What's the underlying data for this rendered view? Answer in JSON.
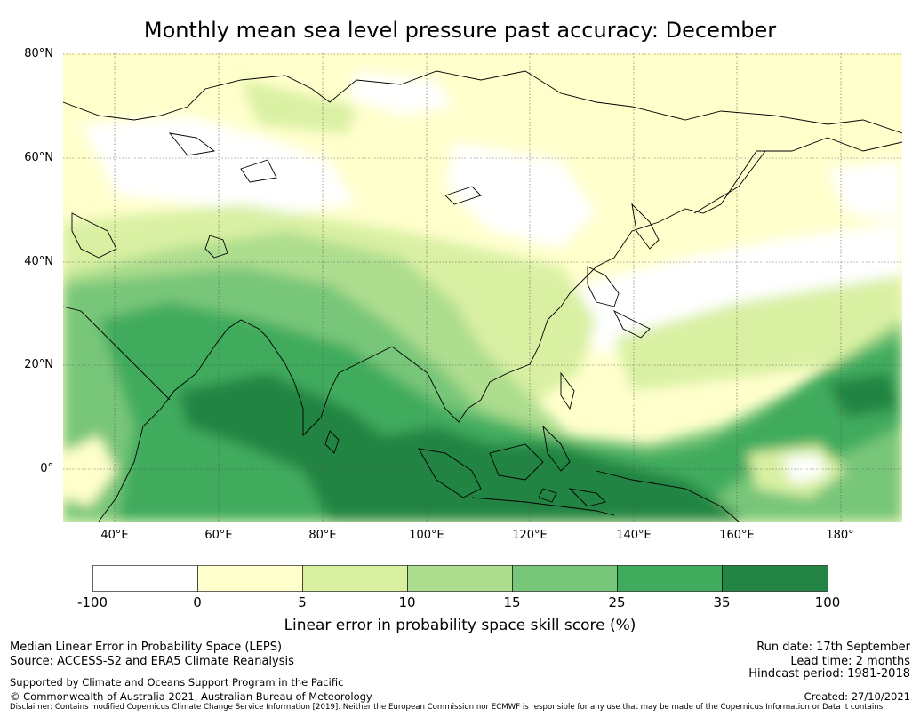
{
  "title": "Monthly mean sea level pressure past accuracy: December",
  "map": {
    "lat_labels": [
      "80°N",
      "60°N",
      "40°N",
      "20°N",
      "0°"
    ],
    "lon_labels": [
      "40°E",
      "60°E",
      "80°E",
      "100°E",
      "120°E",
      "140°E",
      "160°E",
      "180°"
    ],
    "extent": {
      "lon_min": 30,
      "lon_max": 192,
      "lat_min": -10,
      "lat_max": 80
    }
  },
  "colorbar": {
    "ticks": [
      "-100",
      "0",
      "5",
      "10",
      "15",
      "25",
      "35",
      "100"
    ],
    "colors": [
      "#ffffff",
      "#ffffcc",
      "#d9f0a3",
      "#addd8e",
      "#78c679",
      "#41ab5d",
      "#238443"
    ],
    "label": "Linear error in probability space skill score (%)"
  },
  "footer": {
    "left_line1": "Median Linear Error in Probability Space (LEPS)",
    "left_line2": "Source: ACCESS-S2 and ERA5 Climate Reanalysis",
    "supported": "Supported by Climate and Oceans Support Program in the Pacific",
    "copyright": "© Commonwealth of Australia 2021, Australian Bureau of Meteorology",
    "run_date": "Run date: 17th September",
    "lead_time": "Lead time: 2 months",
    "hindcast": "Hindcast period: 1981-2018",
    "created": "Created: 27/10/2021",
    "disclaimer": "Disclaimer: Contains modified Copernicus Climate Change Service Information [2019]. Neither the European Commission nor ECMWF is responsible for any use that may be made of the Copernicus Information or Data it contains."
  }
}
